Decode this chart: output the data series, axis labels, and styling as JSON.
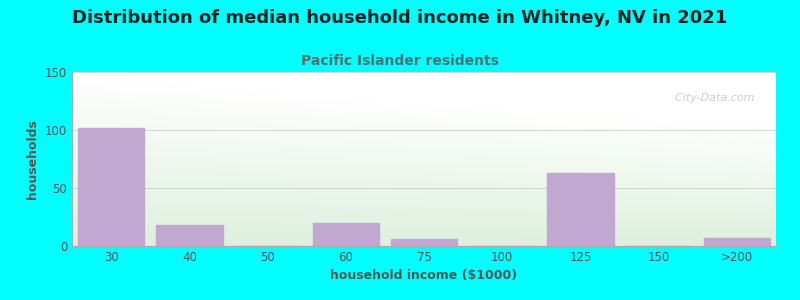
{
  "title": "Distribution of median household income in Whitney, NV in 2021",
  "subtitle": "Pacific Islander residents",
  "xlabel": "household income ($1000)",
  "ylabel": "households",
  "background_color": "#00FFFF",
  "bar_color": "#C0A8D0",
  "categories": [
    "30",
    "40",
    "50",
    "60",
    "75",
    "100",
    "125",
    "150",
    ">200"
  ],
  "values": [
    102,
    18,
    0,
    20,
    6,
    0,
    63,
    0,
    7
  ],
  "ylim": [
    0,
    150
  ],
  "yticks": [
    0,
    50,
    100,
    150
  ],
  "title_fontsize": 13,
  "subtitle_fontsize": 10,
  "axis_label_fontsize": 9,
  "tick_fontsize": 8.5,
  "title_color": "#222222",
  "subtitle_color": "#507070",
  "axis_label_color": "#555555",
  "tick_color": "#555555",
  "watermark": "  City-Data.com",
  "grid_color": "#cccccc",
  "bg_top_right": "#f8f8f8",
  "bg_bottom_left": "#e0f0e0"
}
